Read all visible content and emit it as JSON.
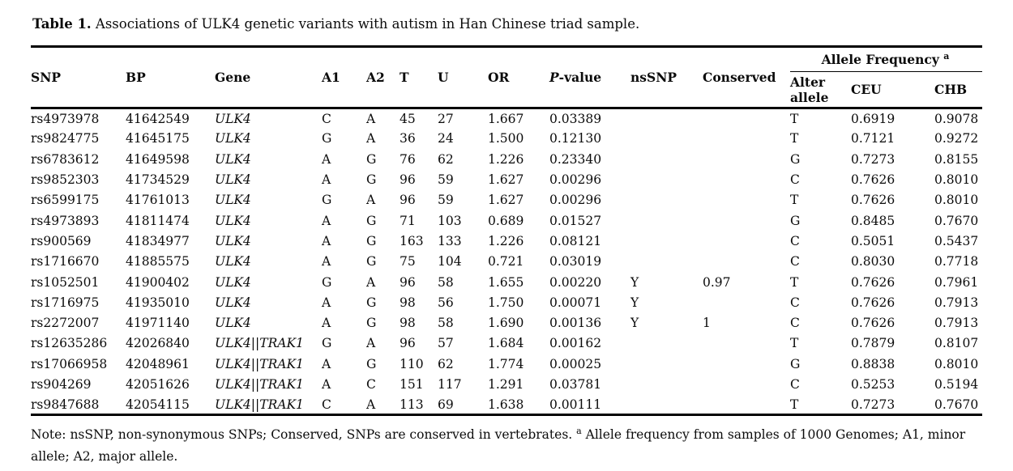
{
  "title": {
    "label": "Table 1.",
    "text": " Associations of ULK4 genetic variants with autism in Han Chinese triad sample."
  },
  "table": {
    "headers": {
      "snp": "SNP",
      "bp": "BP",
      "gene": "Gene",
      "a1": "A1",
      "a2": "A2",
      "t": "T",
      "u": "U",
      "or": "OR",
      "p_italic": "P",
      "p_rest": "-value",
      "nssnp": "nsSNP",
      "conserved": "Conserved",
      "allele_frequency": "Allele Frequency",
      "allele_frequency_sup": "a",
      "alter_allele": "Alter allele",
      "ceu": "CEU",
      "chb": "CHB"
    },
    "rows": [
      {
        "snp": "rs4973978",
        "bp": "41642549",
        "gene": "ULK4",
        "a1": "C",
        "a2": "A",
        "t": "45",
        "u": "27",
        "or": "1.667",
        "p_value": "0.03389",
        "nssnp": "",
        "conserved": "",
        "alter_allele": "T",
        "ceu": "0.6919",
        "chb": "0.9078"
      },
      {
        "snp": "rs9824775",
        "bp": "41645175",
        "gene": "ULK4",
        "a1": "G",
        "a2": "A",
        "t": "36",
        "u": "24",
        "or": "1.500",
        "p_value": "0.12130",
        "nssnp": "",
        "conserved": "",
        "alter_allele": "T",
        "ceu": "0.7121",
        "chb": "0.9272"
      },
      {
        "snp": "rs6783612",
        "bp": "41649598",
        "gene": "ULK4",
        "a1": "A",
        "a2": "G",
        "t": "76",
        "u": "62",
        "or": "1.226",
        "p_value": "0.23340",
        "nssnp": "",
        "conserved": "",
        "alter_allele": "G",
        "ceu": "0.7273",
        "chb": "0.8155"
      },
      {
        "snp": "rs9852303",
        "bp": "41734529",
        "gene": "ULK4",
        "a1": "A",
        "a2": "G",
        "t": "96",
        "u": "59",
        "or": "1.627",
        "p_value": "0.00296",
        "nssnp": "",
        "conserved": "",
        "alter_allele": "C",
        "ceu": "0.7626",
        "chb": "0.8010"
      },
      {
        "snp": "rs6599175",
        "bp": "41761013",
        "gene": "ULK4",
        "a1": "G",
        "a2": "A",
        "t": "96",
        "u": "59",
        "or": "1.627",
        "p_value": "0.00296",
        "nssnp": "",
        "conserved": "",
        "alter_allele": "T",
        "ceu": "0.7626",
        "chb": "0.8010"
      },
      {
        "snp": "rs4973893",
        "bp": "41811474",
        "gene": "ULK4",
        "a1": "A",
        "a2": "G",
        "t": "71",
        "u": "103",
        "or": "0.689",
        "p_value": "0.01527",
        "nssnp": "",
        "conserved": "",
        "alter_allele": "G",
        "ceu": "0.8485",
        "chb": "0.7670"
      },
      {
        "snp": "rs900569",
        "bp": "41834977",
        "gene": "ULK4",
        "a1": "A",
        "a2": "G",
        "t": "163",
        "u": "133",
        "or": "1.226",
        "p_value": "0.08121",
        "nssnp": "",
        "conserved": "",
        "alter_allele": "C",
        "ceu": "0.5051",
        "chb": "0.5437"
      },
      {
        "snp": "rs1716670",
        "bp": "41885575",
        "gene": "ULK4",
        "a1": "A",
        "a2": "G",
        "t": "75",
        "u": "104",
        "or": "0.721",
        "p_value": "0.03019",
        "nssnp": "",
        "conserved": "",
        "alter_allele": "C",
        "ceu": "0.8030",
        "chb": "0.7718"
      },
      {
        "snp": "rs1052501",
        "bp": "41900402",
        "gene": "ULK4",
        "a1": "G",
        "a2": "A",
        "t": "96",
        "u": "58",
        "or": "1.655",
        "p_value": "0.00220",
        "nssnp": "Y",
        "conserved": "0.97",
        "alter_allele": "T",
        "ceu": "0.7626",
        "chb": "0.7961"
      },
      {
        "snp": "rs1716975",
        "bp": "41935010",
        "gene": "ULK4",
        "a1": "A",
        "a2": "G",
        "t": "98",
        "u": "56",
        "or": "1.750",
        "p_value": "0.00071",
        "nssnp": "Y",
        "conserved": "",
        "alter_allele": "C",
        "ceu": "0.7626",
        "chb": "0.7913"
      },
      {
        "snp": "rs2272007",
        "bp": "41971140",
        "gene": "ULK4",
        "a1": "A",
        "a2": "G",
        "t": "98",
        "u": "58",
        "or": "1.690",
        "p_value": "0.00136",
        "nssnp": "Y",
        "conserved": "1",
        "alter_allele": "C",
        "ceu": "0.7626",
        "chb": "0.7913"
      },
      {
        "snp": "rs12635286",
        "bp": "42026840",
        "gene": "ULK4||TRAK1",
        "a1": "G",
        "a2": "A",
        "t": "96",
        "u": "57",
        "or": "1.684",
        "p_value": "0.00162",
        "nssnp": "",
        "conserved": "",
        "alter_allele": "T",
        "ceu": "0.7879",
        "chb": "0.8107"
      },
      {
        "snp": "rs17066958",
        "bp": "42048961",
        "gene": "ULK4||TRAK1",
        "a1": "A",
        "a2": "G",
        "t": "110",
        "u": "62",
        "or": "1.774",
        "p_value": "0.00025",
        "nssnp": "",
        "conserved": "",
        "alter_allele": "G",
        "ceu": "0.8838",
        "chb": "0.8010"
      },
      {
        "snp": "rs904269",
        "bp": "42051626",
        "gene": "ULK4||TRAK1",
        "a1": "A",
        "a2": "C",
        "t": "151",
        "u": "117",
        "or": "1.291",
        "p_value": "0.03781",
        "nssnp": "",
        "conserved": "",
        "alter_allele": "C",
        "ceu": "0.5253",
        "chb": "0.5194"
      },
      {
        "snp": "rs9847688",
        "bp": "42054115",
        "gene": "ULK4||TRAK1",
        "a1": "C",
        "a2": "A",
        "t": "113",
        "u": "69",
        "or": "1.638",
        "p_value": "0.00111",
        "nssnp": "",
        "conserved": "",
        "alter_allele": "T",
        "ceu": "0.7273",
        "chb": "0.7670"
      }
    ]
  },
  "note": {
    "prefix": "Note: nsSNP, non-synonymous SNPs; Conserved, SNPs are conserved in vertebrates.",
    "sup": "a",
    "suffix": "Allele frequency from samples of 1000 Genomes; A1, minor allele; A2, major allele."
  }
}
